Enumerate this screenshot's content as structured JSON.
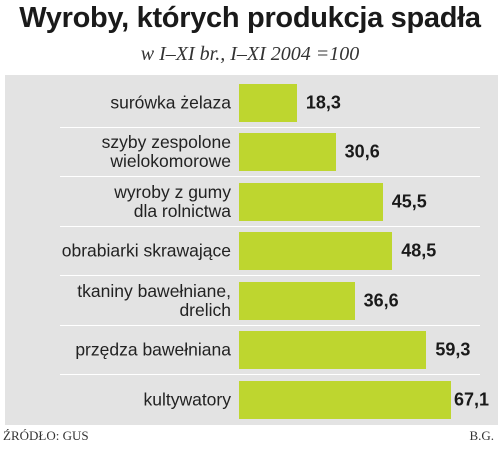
{
  "chart_data": {
    "type": "bar",
    "orientation": "horizontal",
    "title": "Wyroby, których produkcja spadła",
    "subtitle": "w I–XI br., I–XI 2004 =100",
    "categories": [
      [
        "surówka żelaza"
      ],
      [
        "szyby zespolone",
        "wielokomorowe"
      ],
      [
        "wyroby z gumy",
        "dla rolnictwa"
      ],
      [
        "obrabiarki skrawające"
      ],
      [
        "tkaniny bawełniane,",
        "drelich"
      ],
      [
        "przędza bawełniana"
      ],
      [
        "kultywatory"
      ]
    ],
    "values": [
      18.3,
      30.6,
      45.5,
      48.5,
      36.6,
      59.3,
      67.1
    ],
    "value_labels": [
      "18,3",
      "30,6",
      "45,5",
      "48,5",
      "36,6",
      "59,3",
      "67,1"
    ],
    "xlim": [
      0,
      67.1
    ],
    "bar_color": "#bed62f",
    "panel_color": "#e3e3e3",
    "grid": false,
    "legend": "none"
  },
  "footer": {
    "source": "ŹRÓDŁO: GUS",
    "author": "B.G."
  }
}
